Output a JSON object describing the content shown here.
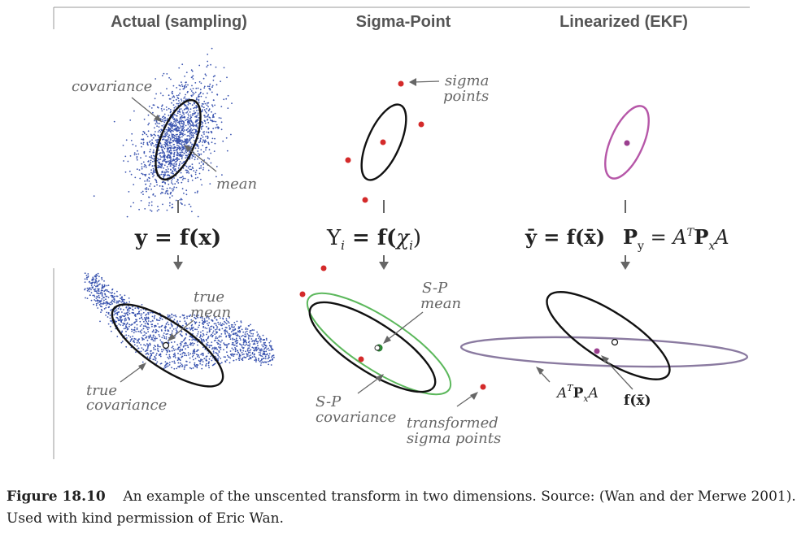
{
  "columns": {
    "actual": {
      "title": "Actual (sampling)"
    },
    "sigma": {
      "title": "Sigma-Point"
    },
    "ekf": {
      "title": "Linearized (EKF)"
    }
  },
  "labels": {
    "covariance": "covariance",
    "mean": "mean",
    "true_mean_1": "true",
    "true_mean_2": "mean",
    "true_cov_1": "true",
    "true_cov_2": "covariance",
    "sigma_points_1": "sigma",
    "sigma_points_2": "points",
    "sp_mean_1": "S-P",
    "sp_mean_2": "mean",
    "sp_cov_1": "S-P",
    "sp_cov_2": "covariance",
    "transformed_1": "transformed",
    "transformed_2": "sigma points",
    "atpa": "A",
    "atpa_sup": "T",
    "atpa_p": "P",
    "atpa_sub": "x",
    "atpa_a": "A",
    "fxbar": "f(x̄)"
  },
  "equations": {
    "actual": "y = f(x)",
    "sigma_lhs": "Υ",
    "sigma_sub": "i",
    "sigma_eq": " = f(",
    "sigma_chi": "χ",
    "sigma_chi_sub": "i",
    "sigma_close": ")",
    "ekf_mean": "ȳ = f(x̄)",
    "ekf_cov_p": "P",
    "ekf_cov_sub": "y",
    "ekf_cov_eq": " = A",
    "ekf_cov_sup": "T",
    "ekf_cov_px": "P",
    "ekf_cov_px_sub": "x",
    "ekf_cov_a": "A"
  },
  "caption": {
    "number": "Figure 18.10",
    "text": "An example of the unscented transform in two dimensions.  Source: (Wan and der Merwe 2001).  Used with kind permission of Eric Wan."
  },
  "colors": {
    "sample_points": "#3b55b0",
    "sigma_points": "#d42a2a",
    "sp_ellipse": "#5cb85c",
    "ekf_ellipse": "#b657a8",
    "ekf_output": "#8a7aa0"
  }
}
